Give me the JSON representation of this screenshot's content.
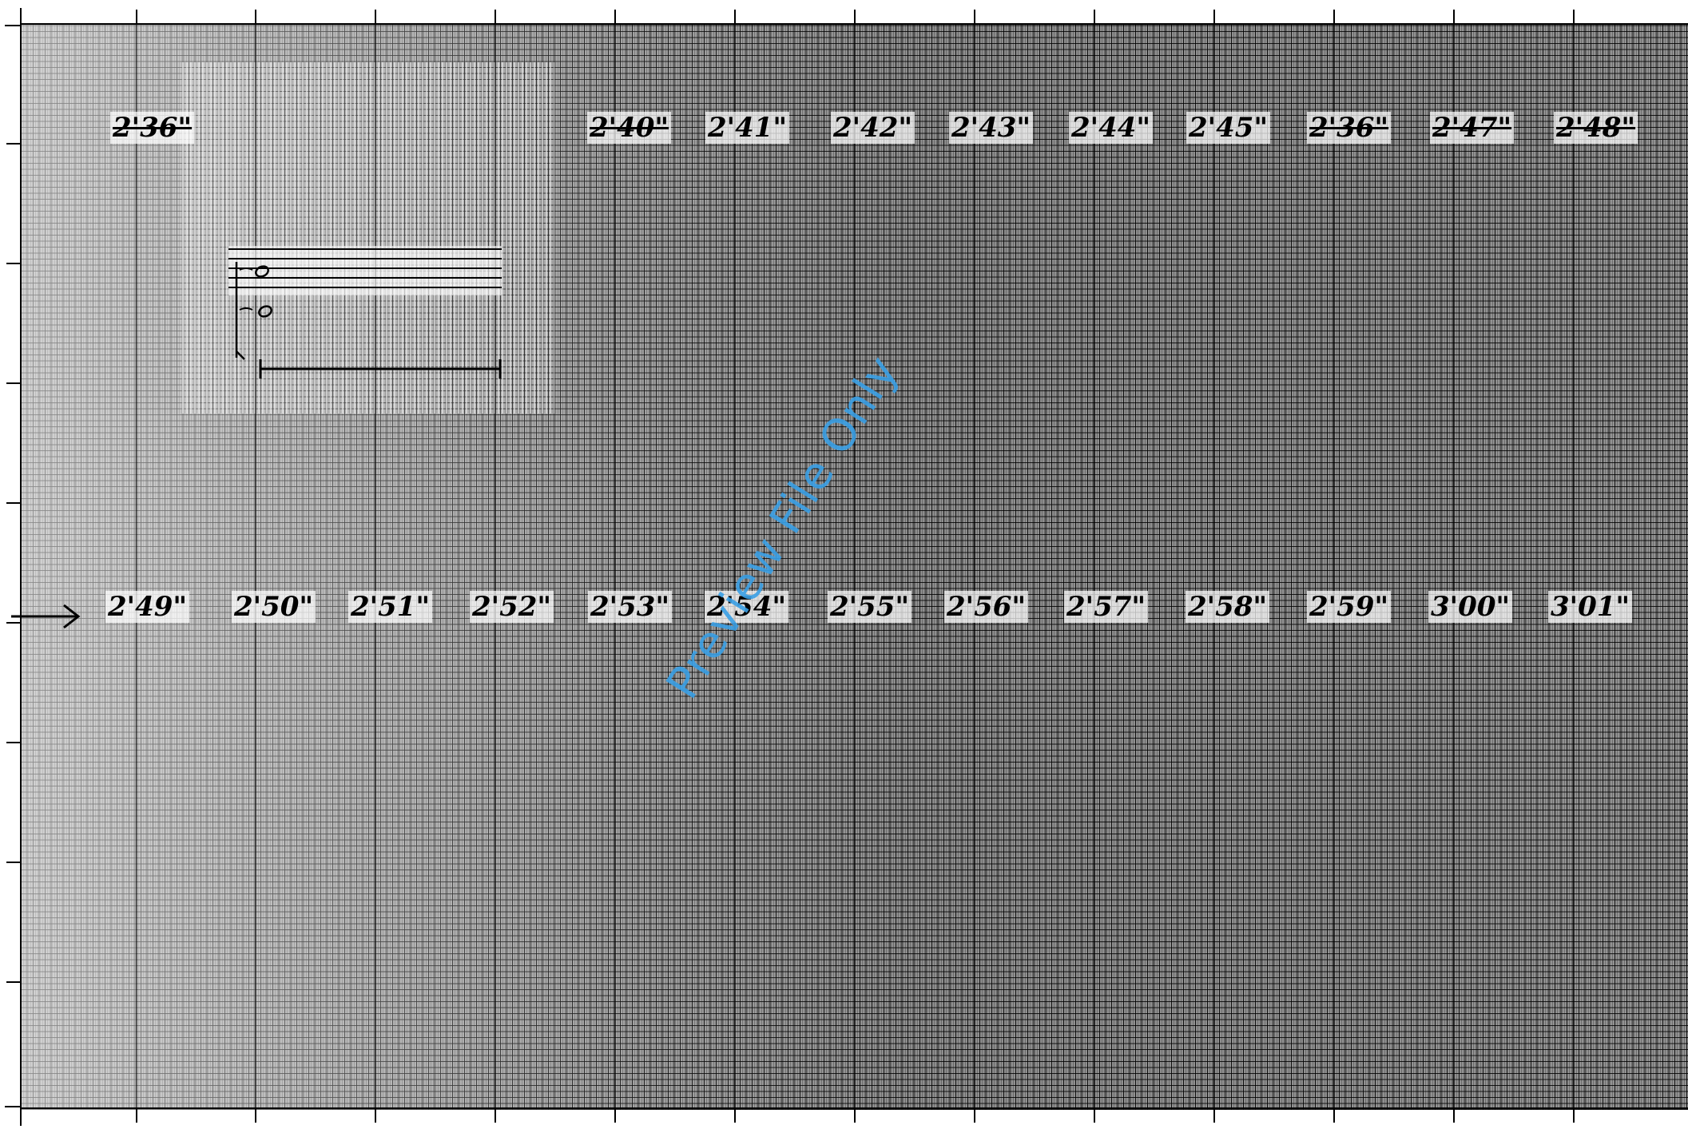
{
  "top_row_labels": [
    "2'36\"",
    "2'40\"",
    "2'41\"",
    "2'42\"",
    "2'43\"",
    "2'44\"",
    "2'45\"",
    "2'36\"",
    "2'47\"",
    "2'48\""
  ],
  "top_row_struck": [
    true,
    true,
    false,
    false,
    false,
    false,
    false,
    true,
    true,
    true
  ],
  "bottom_row_labels": [
    "2'49\"",
    "2'50\"",
    "2'51\"",
    "2'52\"",
    "2'53\"",
    "2'54\"",
    "2'55\"",
    "2'56\"",
    "2'57\"",
    "2'58\"",
    "2'59\"",
    "3'00\"",
    "3'01\""
  ],
  "watermark": "Preview File Only",
  "colors": {
    "ink": "#000000",
    "grid": "#9a9a9a",
    "watermark": "#3aa0e6"
  },
  "icons": {
    "row_marker": "right-arrow-icon",
    "notation": "staff-notation-sketch"
  }
}
